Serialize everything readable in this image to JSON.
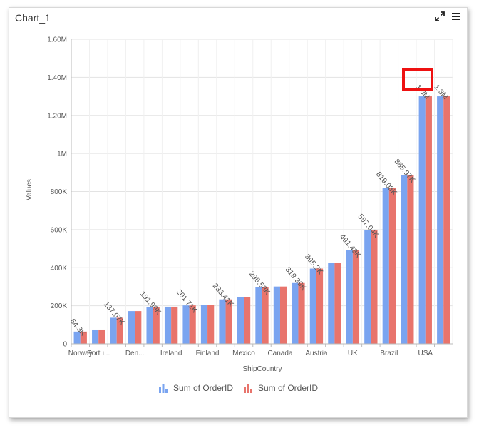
{
  "widget": {
    "title": "Chart_1"
  },
  "icons": {
    "expand": "expand-icon",
    "menu": "hamburger-menu-icon",
    "legend": "bar-chart-icon"
  },
  "chart_data": {
    "type": "bar",
    "xlabel": "ShipCountry",
    "ylabel": "Values",
    "ylim": [
      0,
      1600000
    ],
    "yticks": [
      0,
      200000,
      400000,
      600000,
      800000,
      1000000,
      1200000,
      1400000,
      1600000
    ],
    "ytick_labels": [
      "0",
      "200K",
      "400K",
      "600K",
      "800K",
      "1M",
      "1.20M",
      "1.40M",
      "1.60M"
    ],
    "grid": true,
    "legend_position": "bottom",
    "categories": [
      "Norway",
      "Portu...",
      "",
      "Den...",
      "",
      "Ireland",
      "",
      "Finland",
      "",
      "Mexico",
      "",
      "Canada",
      "",
      "Austria",
      "",
      "UK",
      "",
      "Brazil",
      "",
      "USA",
      ""
    ],
    "values": [
      64300,
      75000,
      137070,
      172000,
      191990,
      195000,
      201710,
      205000,
      233410,
      247000,
      296580,
      301000,
      319390,
      395200,
      425000,
      491430,
      597040,
      819080,
      885970,
      1300000,
      1300000
    ],
    "data_labels": [
      "64.3K",
      "",
      "137.07K",
      "",
      "191.99K",
      "",
      "201.71K",
      "",
      "233.41K",
      "",
      "296.58K",
      "",
      "319.39K",
      "395.2K",
      "",
      "491.43K",
      "597.04K",
      "819.08K",
      "885.97K",
      "1.3M",
      "1.3M"
    ],
    "series": [
      {
        "name": "Sum of OrderID",
        "color": "#7aa4f0"
      },
      {
        "name": "Sum of OrderID",
        "color": "#e8746c"
      }
    ]
  }
}
